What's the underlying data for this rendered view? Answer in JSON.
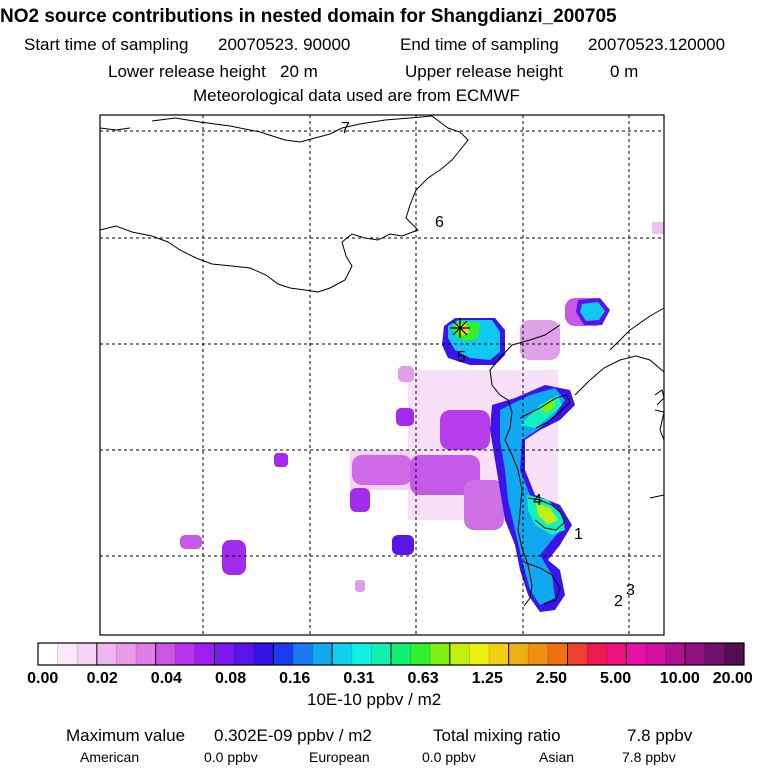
{
  "header": {
    "title": "NO2 source contributions in nested domain for Shangdianzi_200705",
    "start_label": "Start time of sampling",
    "start_value": "20070523. 90000",
    "end_label": "End time of sampling",
    "end_value": "20070523.120000",
    "lower_label": "Lower release height",
    "lower_value": "20 m",
    "upper_label": "Upper release height",
    "upper_value": "0 m",
    "met_line": "Meteorological data used are from ECMWF"
  },
  "map": {
    "region_labels": [
      "1",
      "2",
      "3",
      "4",
      "5",
      "6",
      "7"
    ]
  },
  "colorbar": {
    "ticks": [
      "0.00",
      "0.02",
      "0.04",
      "0.08",
      "0.16",
      "0.31",
      "0.63",
      "1.25",
      "2.50",
      "5.00",
      "10.00",
      "20.00"
    ],
    "unit": "10E-10 ppbv / m2",
    "colors": [
      "#ffffff",
      "#fbe9fb",
      "#f6d2f6",
      "#f0b6f0",
      "#e89ae8",
      "#e07ce6",
      "#cc55e6",
      "#b933ee",
      "#9b1ff0",
      "#7a18ee",
      "#5a14ea",
      "#3412e6",
      "#1a3cf0",
      "#1a78f0",
      "#10a8f0",
      "#10d0f0",
      "#10f0e0",
      "#10f0b0",
      "#10f070",
      "#30f030",
      "#80f010",
      "#c0f010",
      "#f0f010",
      "#f0d010",
      "#f0b010",
      "#f09010",
      "#f07010",
      "#f04030",
      "#f01850",
      "#f01080",
      "#e810a8",
      "#d010a0",
      "#b01090",
      "#901080",
      "#701070",
      "#501050"
    ]
  },
  "footer": {
    "max_label": "Maximum value",
    "max_value": "0.302E-09 ppbv / m2",
    "total_label": "Total mixing ratio",
    "total_value": "7.8 ppbv",
    "american_label": "American",
    "american_value": "0.0 ppbv",
    "european_label": "European",
    "european_value": "0.0 ppbv",
    "asian_label": "Asian",
    "asian_value": "7.8 ppbv"
  },
  "chart_data": {
    "type": "heatmap",
    "title": "NO2 source contributions in nested domain for Shangdianzi_200705",
    "colorbar_levels": [
      0.0,
      0.02,
      0.04,
      0.08,
      0.16,
      0.31,
      0.63,
      1.25,
      2.5,
      5.0,
      10.0,
      20.0
    ],
    "colorbar_unit": "10E-10 ppbv / m2",
    "max_value": "0.302E-09 ppbv / m2",
    "receptor": "Shangdianzi"
  }
}
